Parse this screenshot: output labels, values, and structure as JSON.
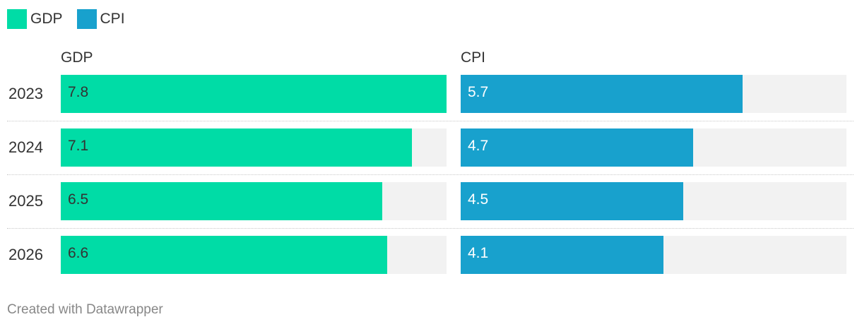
{
  "legend": [
    {
      "label": "GDP",
      "color": "#00dca6"
    },
    {
      "label": "CPI",
      "color": "#18a1cd"
    }
  ],
  "chart_data": {
    "type": "bar",
    "orientation": "horizontal",
    "layout": "small-multiples",
    "categories": [
      "2023",
      "2024",
      "2025",
      "2026"
    ],
    "series": [
      {
        "name": "GDP",
        "values": [
          7.8,
          7.1,
          6.5,
          6.6
        ],
        "color": "#00dca6",
        "label_color": "#333333",
        "max": 7.8
      },
      {
        "name": "CPI",
        "values": [
          5.7,
          4.7,
          4.5,
          4.1
        ],
        "color": "#18a1cd",
        "label_color": "#ffffff",
        "max": 7.8
      }
    ],
    "panel_titles": [
      "GDP",
      "CPI"
    ],
    "value_labels": {
      "GDP": [
        "7.8",
        "7.1",
        "6.5",
        "6.6"
      ],
      "CPI": [
        "5.7",
        "4.7",
        "4.5",
        "4.1"
      ]
    },
    "background_color": "#f2f2f2"
  },
  "footer": {
    "credit": "Created with Datawrapper"
  }
}
